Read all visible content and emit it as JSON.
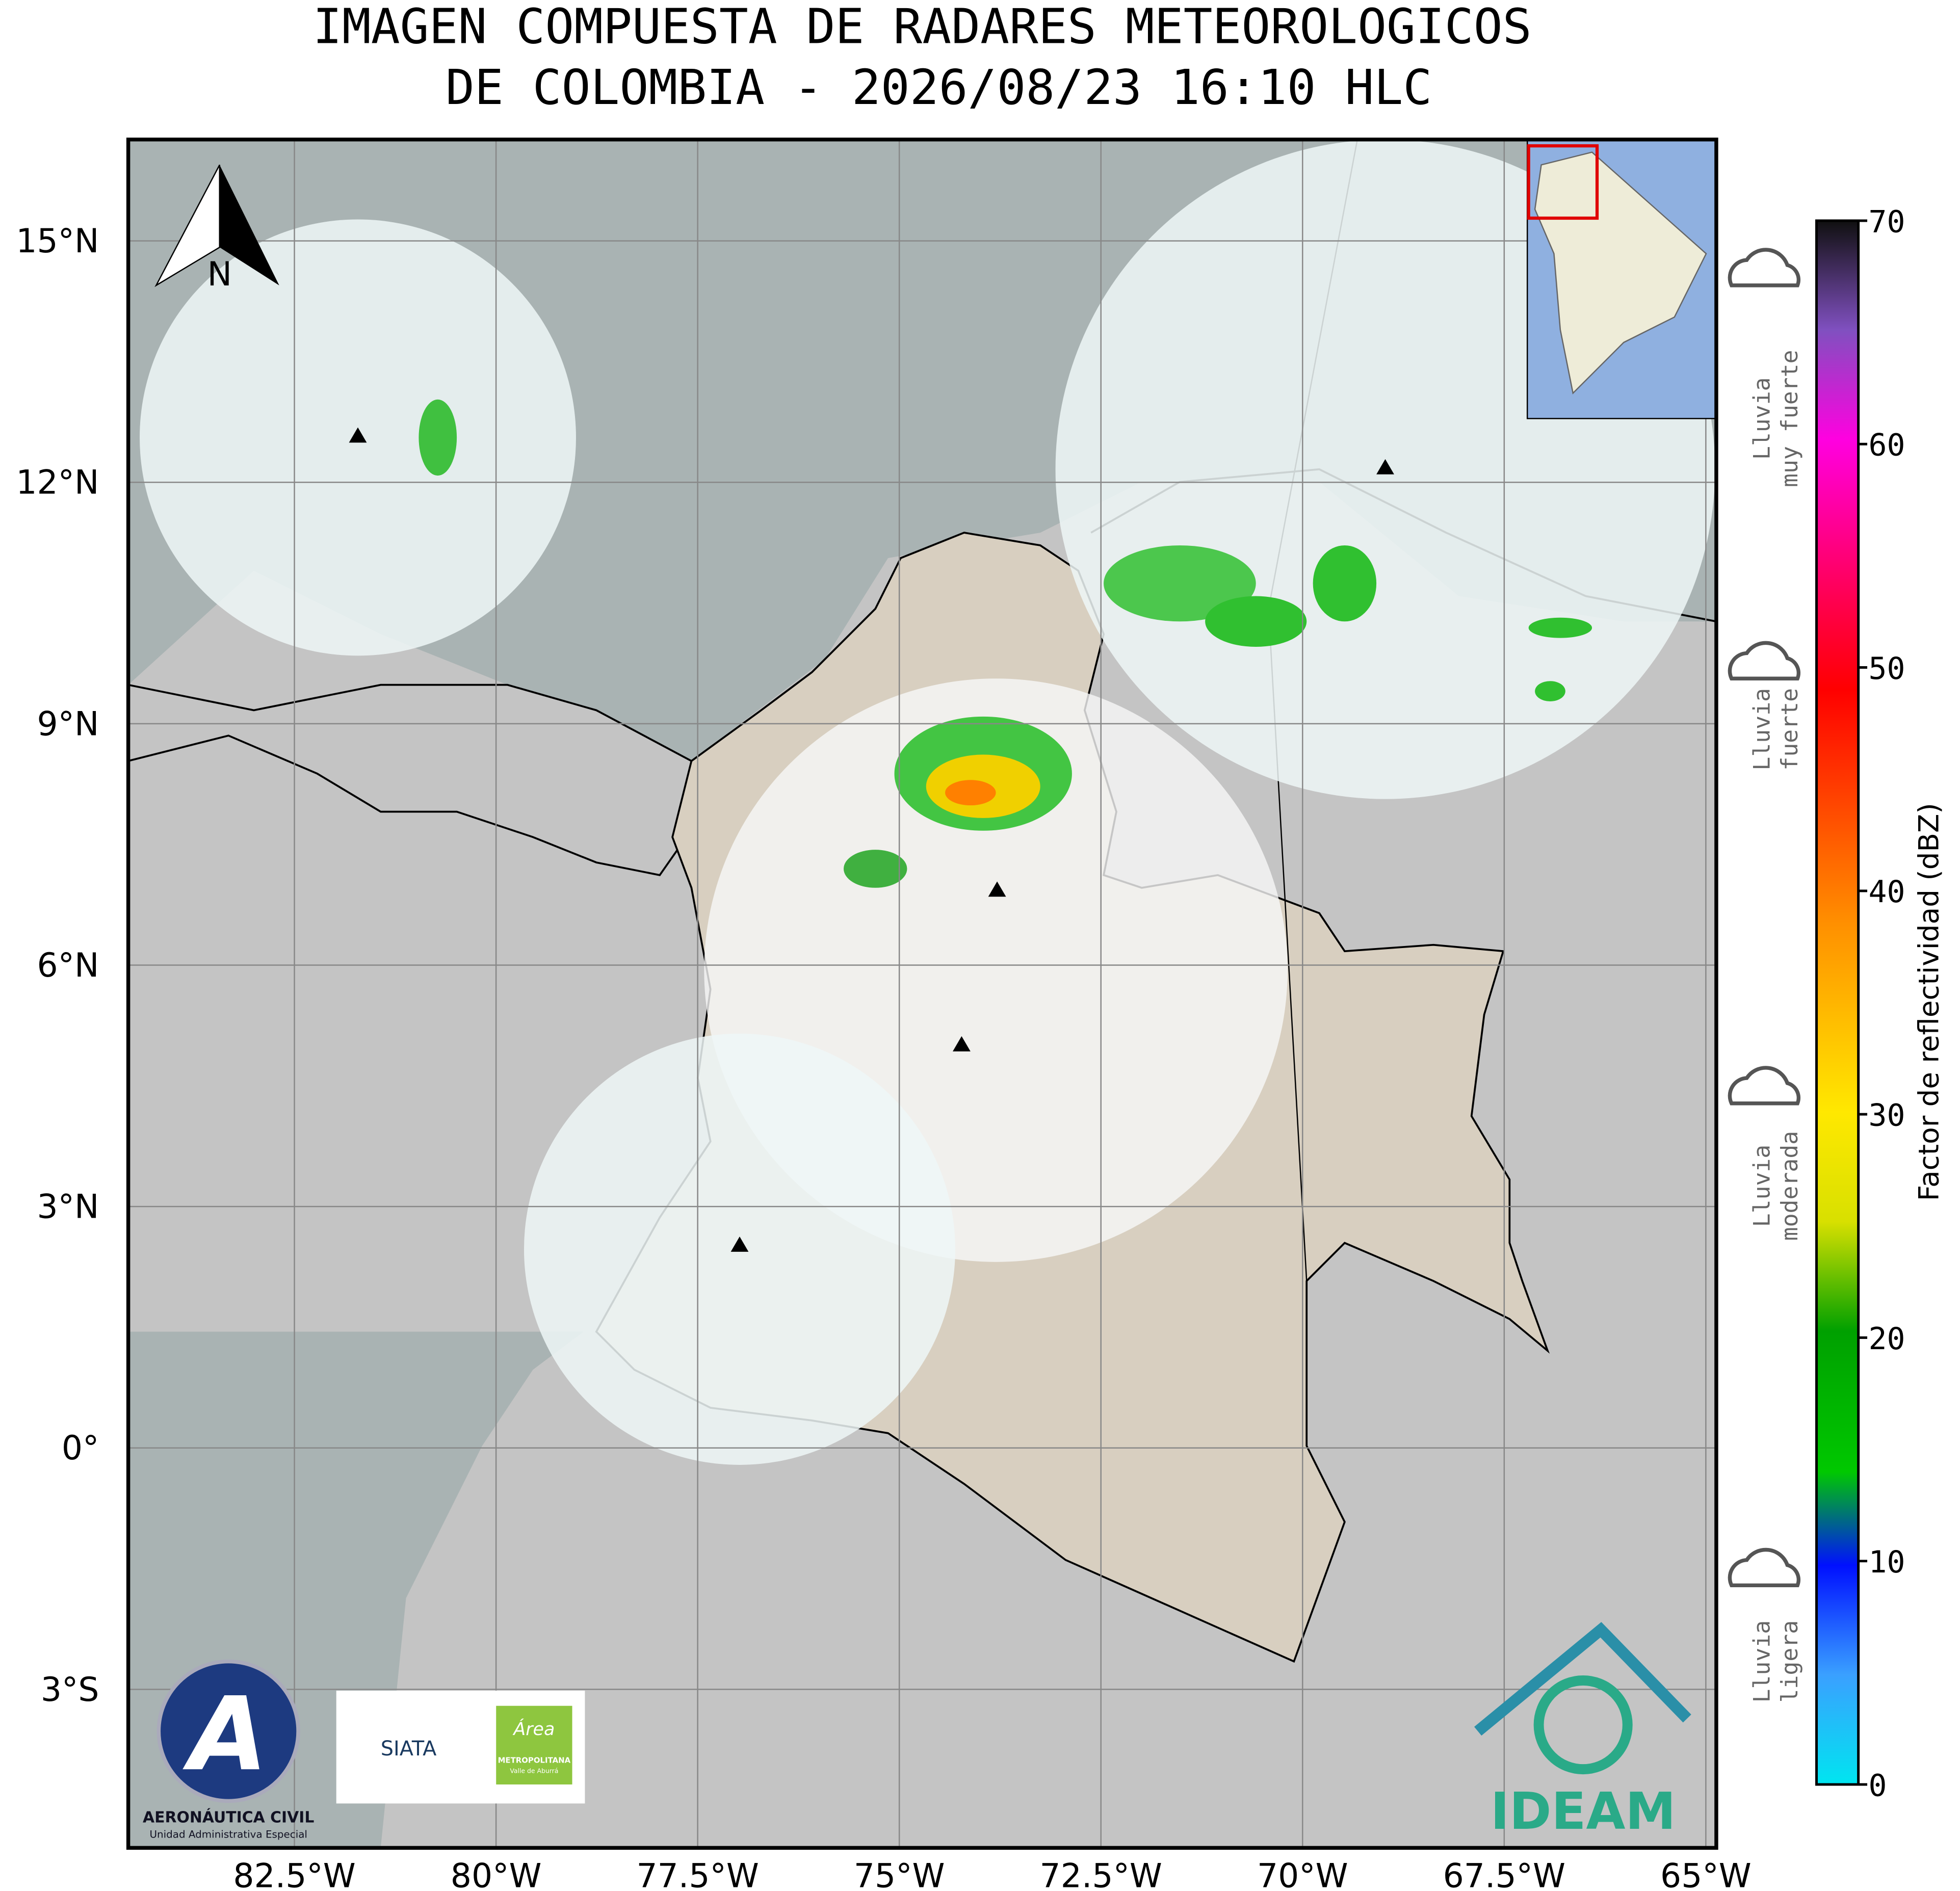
{
  "title": [
    "IMAGEN COMPUESTA DE RADARES METEOROLOGICOS",
    "DE COLOMBIA - 2026/08/23 16:10 HLC"
  ],
  "map": {
    "xlim": [
      -84.56,
      -64.87
    ],
    "ylim": [
      -4.97,
      16.26
    ],
    "xticks": [
      {
        "value": -82.5,
        "label": "82.5°W"
      },
      {
        "value": -80,
        "label": "80°W"
      },
      {
        "value": -77.5,
        "label": "77.5°W"
      },
      {
        "value": -75,
        "label": "75°W"
      },
      {
        "value": -72.5,
        "label": "72.5°W"
      },
      {
        "value": -70,
        "label": "70°W"
      },
      {
        "value": -67.5,
        "label": "67.5°W"
      },
      {
        "value": -65,
        "label": "65°W"
      }
    ],
    "yticks": [
      {
        "value": 15,
        "label": "15°N"
      },
      {
        "value": 12,
        "label": "12°N"
      },
      {
        "value": 9,
        "label": "9°N"
      },
      {
        "value": 6,
        "label": "6°N"
      },
      {
        "value": 3,
        "label": "3°N"
      },
      {
        "value": 0,
        "label": "0°"
      },
      {
        "value": -3,
        "label": "3°S"
      }
    ],
    "north": "N"
  },
  "colorbar": {
    "label": "Factor de reflectividad (dBZ)",
    "lim": [
      0,
      70
    ],
    "ticks": [
      0,
      10,
      20,
      30,
      40,
      50,
      60,
      70
    ]
  },
  "legend": [
    [
      "Lluvia",
      "muy fuerte"
    ],
    [
      "Lluvia",
      "fuerte"
    ],
    [
      "Lluvia",
      "moderada"
    ],
    [
      "Lluvia",
      "ligera"
    ]
  ],
  "logos": {
    "aero": [
      "AERONÁUTICA CIVIL",
      "Unidad Administrativa Especial"
    ],
    "siata": "SIATA",
    "area": [
      "Área",
      "METROPOLITANA",
      "Valle de Aburrá"
    ],
    "ideam": "IDEAM"
  }
}
